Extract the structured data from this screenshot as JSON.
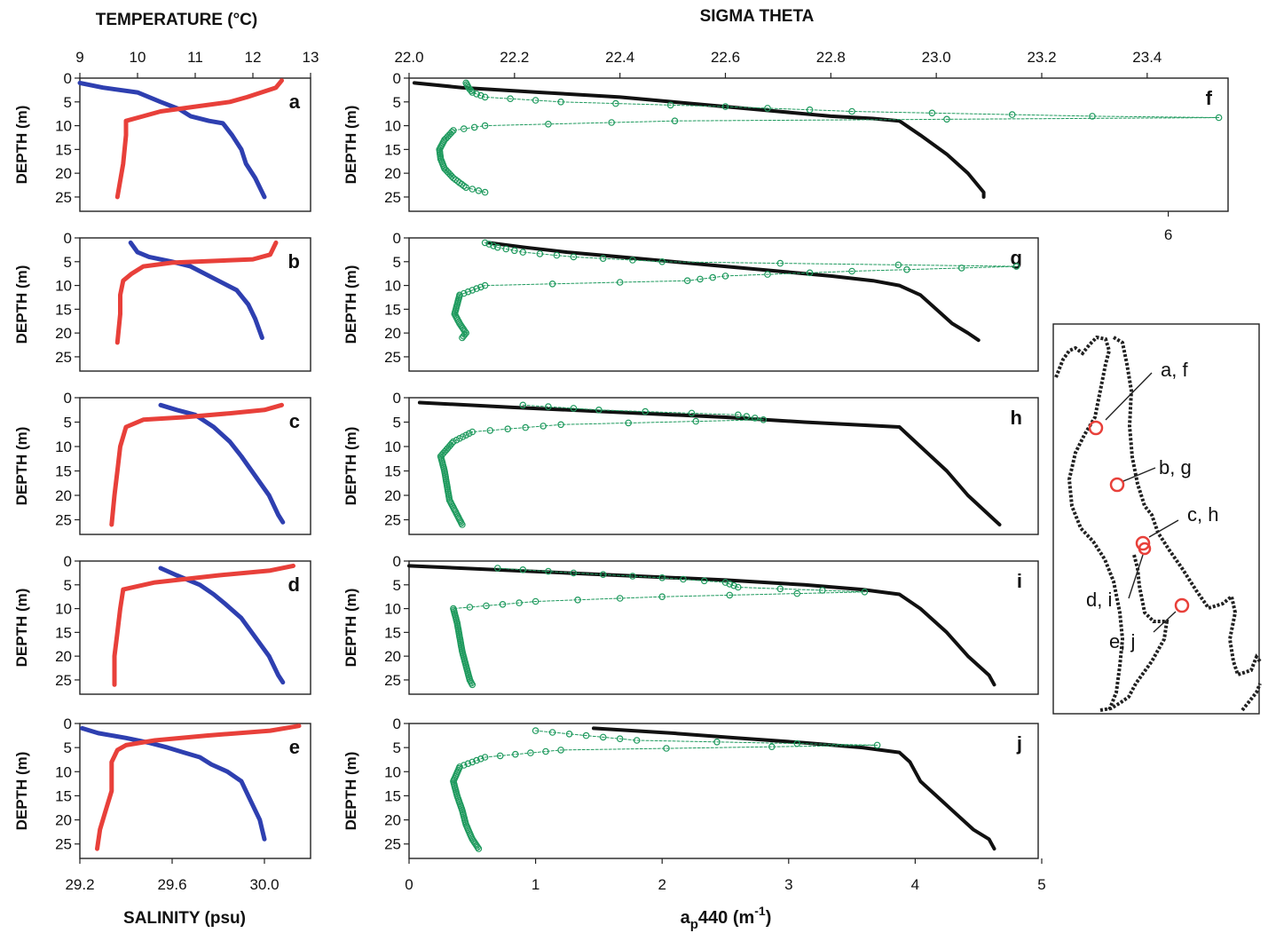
{
  "figure": {
    "temperature_title": "TEMPERATURE (°C)",
    "salinity_title": "SALINITY (psu)",
    "sigma_title": "SIGMA THETA",
    "ap_title_main": "a",
    "ap_title_sub": "p",
    "ap_title_rest": "440 (m",
    "ap_title_sup": "-1",
    "ap_title_close": ")",
    "depth_label": "DEPTH (m)",
    "extra_tick": "6"
  },
  "colors": {
    "temperature": "#e8403a",
    "salinity": "#2e3fb0",
    "sigma": "#111111",
    "ap440": "#1f9a5e",
    "map_marker": "#e8403a",
    "coast": "#222222"
  },
  "map": {
    "stations": [
      {
        "label": "a, f"
      },
      {
        "label": "b, g"
      },
      {
        "label": "c, h"
      },
      {
        "label": "d, i"
      },
      {
        "label": "e, j"
      }
    ]
  },
  "chart_data": [
    {
      "type": "line",
      "group": "temperature-salinity",
      "x_axis_top": {
        "label": "TEMPERATURE (°C)",
        "range": [
          9,
          13
        ],
        "ticks": [
          "9",
          "10",
          "11",
          "12",
          "13"
        ]
      },
      "x_axis_bottom": {
        "label": "SALINITY (psu)",
        "range": [
          29.2,
          30.2
        ],
        "ticks": [
          "29.2",
          "29.6",
          "30.0"
        ],
        "tick_values": [
          29.2,
          29.6,
          30.0
        ]
      },
      "y_axis": {
        "label": "DEPTH (m)",
        "range": [
          0,
          28
        ],
        "inverted": true,
        "ticks": [
          "0",
          "5",
          "10",
          "15",
          "20",
          "25"
        ]
      },
      "panels": [
        {
          "letter": "a",
          "temperature": {
            "depth": [
              0.5,
              2,
              4,
              5,
              6,
              7,
              8,
              9,
              12,
              18,
              25
            ],
            "value": [
              12.5,
              12.4,
              11.9,
              11.6,
              11.0,
              10.4,
              10.1,
              9.8,
              9.8,
              9.75,
              9.65
            ]
          },
          "salinity": {
            "depth": [
              1,
              2,
              3,
              5,
              6.5,
              8,
              9,
              9.5,
              12,
              15,
              18,
              21,
              25
            ],
            "value": [
              29.2,
              29.3,
              29.45,
              29.55,
              29.63,
              29.68,
              29.76,
              29.82,
              29.86,
              29.9,
              29.92,
              29.96,
              30.0
            ]
          }
        },
        {
          "letter": "b",
          "temperature": {
            "depth": [
              1,
              3.5,
              4.5,
              5.2,
              6,
              7.5,
              9,
              12,
              16,
              22
            ],
            "value": [
              12.4,
              12.3,
              12.0,
              10.6,
              10.1,
              9.9,
              9.75,
              9.7,
              9.7,
              9.65
            ]
          },
          "salinity": {
            "depth": [
              1,
              3,
              4,
              5,
              6,
              9,
              11,
              14,
              17,
              21
            ],
            "value": [
              29.42,
              29.45,
              29.5,
              29.6,
              29.68,
              29.8,
              29.88,
              29.93,
              29.96,
              29.99
            ]
          }
        },
        {
          "letter": "c",
          "temperature": {
            "depth": [
              1.5,
              2.5,
              3.2,
              4,
              4.5,
              6,
              10,
              15,
              20,
              26
            ],
            "value": [
              12.5,
              12.2,
              11.6,
              10.8,
              10.1,
              9.8,
              9.7,
              9.65,
              9.6,
              9.55
            ]
          },
          "salinity": {
            "depth": [
              1.5,
              2.5,
              3.5,
              6,
              9,
              12,
              16,
              20,
              24,
              25.5
            ],
            "value": [
              29.55,
              29.62,
              29.7,
              29.78,
              29.85,
              29.9,
              29.96,
              30.02,
              30.06,
              30.08
            ]
          }
        },
        {
          "letter": "d",
          "temperature": {
            "depth": [
              1,
              2,
              3,
              4.5,
              6,
              10,
              15,
              20,
              26
            ],
            "value": [
              12.7,
              12.3,
              11.4,
              10.3,
              9.75,
              9.7,
              9.65,
              9.6,
              9.6
            ]
          },
          "salinity": {
            "depth": [
              1.5,
              3,
              5,
              7,
              9,
              12,
              16,
              20,
              24,
              25.5
            ],
            "value": [
              29.55,
              29.62,
              29.72,
              29.78,
              29.83,
              29.9,
              29.96,
              30.02,
              30.06,
              30.08
            ]
          }
        },
        {
          "letter": "e",
          "temperature": {
            "depth": [
              0.5,
              1.5,
              2.5,
              3.5,
              4.5,
              5.5,
              8,
              14,
              18,
              22,
              26
            ],
            "value": [
              12.8,
              12.3,
              11.2,
              10.3,
              9.8,
              9.65,
              9.55,
              9.55,
              9.45,
              9.35,
              9.3
            ]
          },
          "salinity": {
            "depth": [
              1,
              2,
              3,
              4,
              5,
              6,
              7,
              8.5,
              10,
              12,
              16,
              20,
              24
            ],
            "value": [
              29.21,
              29.28,
              29.4,
              29.5,
              29.58,
              29.65,
              29.72,
              29.77,
              29.84,
              29.9,
              29.94,
              29.98,
              30.0
            ]
          }
        }
      ]
    },
    {
      "type": "scatter",
      "group": "sigma-theta-ap440",
      "x_axis_top": {
        "label": "SIGMA THETA",
        "range": [
          22.0,
          23.6
        ],
        "ticks": [
          "22.0",
          "22.2",
          "22.4",
          "22.6",
          "22.8",
          "23.0",
          "23.2",
          "23.4"
        ]
      },
      "x_axis_bottom": {
        "label": "ap440 (m-1)",
        "range": [
          0,
          5
        ],
        "ticks": [
          "0",
          "1",
          "2",
          "3",
          "4",
          "5"
        ]
      },
      "extra_tick": "6",
      "y_axis": {
        "label": "DEPTH (m)",
        "range": [
          0,
          28
        ],
        "inverted": true,
        "ticks": [
          "0",
          "5",
          "10",
          "15",
          "20",
          "25"
        ]
      },
      "panels": [
        {
          "letter": "f",
          "sigma": {
            "depth": [
              1,
              2,
              3,
              4,
              5,
              6,
              7,
              8,
              8.5,
              9,
              12,
              16,
              20,
              24,
              25
            ],
            "value": [
              22.01,
              22.1,
              22.25,
              22.4,
              22.5,
              22.6,
              22.7,
              22.8,
              22.88,
              22.93,
              22.97,
              23.02,
              23.06,
              23.09,
              23.09
            ]
          },
          "ap440": {
            "depth": [
              1,
              2,
              3,
              4,
              5,
              6,
              7,
              8,
              8.3,
              9,
              10,
              11,
              13,
              15,
              17,
              19,
              21,
              23,
              24
            ],
            "value": [
              0.45,
              0.47,
              0.5,
              0.6,
              1.2,
              2.5,
              3.5,
              5.4,
              6.4,
              2.1,
              0.6,
              0.35,
              0.28,
              0.24,
              0.25,
              0.28,
              0.35,
              0.45,
              0.6
            ]
          }
        },
        {
          "letter": "g",
          "sigma": {
            "depth": [
              1,
              2,
              3,
              4,
              5,
              6,
              7,
              8,
              9,
              10,
              12,
              15,
              18,
              20,
              21.5
            ],
            "value": [
              22.15,
              22.22,
              22.3,
              22.4,
              22.5,
              22.6,
              22.7,
              22.8,
              22.88,
              22.93,
              22.97,
              23.0,
              23.03,
              23.06,
              23.08
            ]
          },
          "ap440": {
            "depth": [
              1,
              2,
              3,
              4,
              5,
              6,
              7,
              8,
              9,
              10,
              12,
              14,
              16,
              18,
              20,
              21
            ],
            "value": [
              0.6,
              0.7,
              0.9,
              1.3,
              2.0,
              4.8,
              3.5,
              2.5,
              2.2,
              0.6,
              0.4,
              0.38,
              0.36,
              0.4,
              0.45,
              0.42
            ]
          }
        },
        {
          "letter": "h",
          "sigma": {
            "depth": [
              1,
              2,
              3,
              4,
              5,
              6,
              10,
              15,
              20,
              25,
              26
            ],
            "value": [
              22.02,
              22.2,
              22.4,
              22.6,
              22.75,
              22.93,
              22.97,
              23.02,
              23.06,
              23.11,
              23.12
            ]
          },
          "ap440": {
            "depth": [
              1.5,
              2.5,
              3.5,
              4.5,
              5.5,
              7,
              9,
              12,
              15,
              18,
              21,
              24,
              26
            ],
            "value": [
              0.9,
              1.5,
              2.6,
              2.8,
              1.2,
              0.5,
              0.35,
              0.25,
              0.28,
              0.3,
              0.32,
              0.38,
              0.42
            ]
          }
        },
        {
          "letter": "i",
          "sigma": {
            "depth": [
              1,
              2,
              3,
              4,
              5,
              6,
              7,
              10,
              15,
              20,
              24,
              26
            ],
            "value": [
              22.0,
              22.2,
              22.4,
              22.6,
              22.75,
              22.86,
              22.93,
              22.97,
              23.02,
              23.06,
              23.1,
              23.11
            ]
          },
          "ap440": {
            "depth": [
              1.5,
              2.5,
              3.5,
              4.5,
              5.5,
              6.5,
              7.5,
              8.5,
              10,
              13,
              16,
              19,
              22,
              25,
              26
            ],
            "value": [
              0.7,
              1.3,
              2.0,
              2.5,
              2.6,
              3.6,
              2.0,
              1.0,
              0.35,
              0.38,
              0.4,
              0.42,
              0.45,
              0.48,
              0.5
            ]
          }
        },
        {
          "letter": "j",
          "sigma": {
            "depth": [
              1,
              2,
              3,
              4,
              5,
              6,
              8,
              12,
              15,
              18,
              22,
              24,
              26
            ],
            "value": [
              22.35,
              22.5,
              22.62,
              22.75,
              22.86,
              22.93,
              22.95,
              22.97,
              23.0,
              23.03,
              23.07,
              23.1,
              23.11
            ]
          },
          "ap440": {
            "depth": [
              1.5,
              2.5,
              3.5,
              4.5,
              5.5,
              7,
              9,
              12,
              15,
              18,
              21,
              24,
              26
            ],
            "value": [
              1.0,
              1.4,
              1.8,
              3.7,
              1.2,
              0.6,
              0.4,
              0.35,
              0.38,
              0.42,
              0.45,
              0.5,
              0.55
            ]
          }
        }
      ]
    }
  ]
}
